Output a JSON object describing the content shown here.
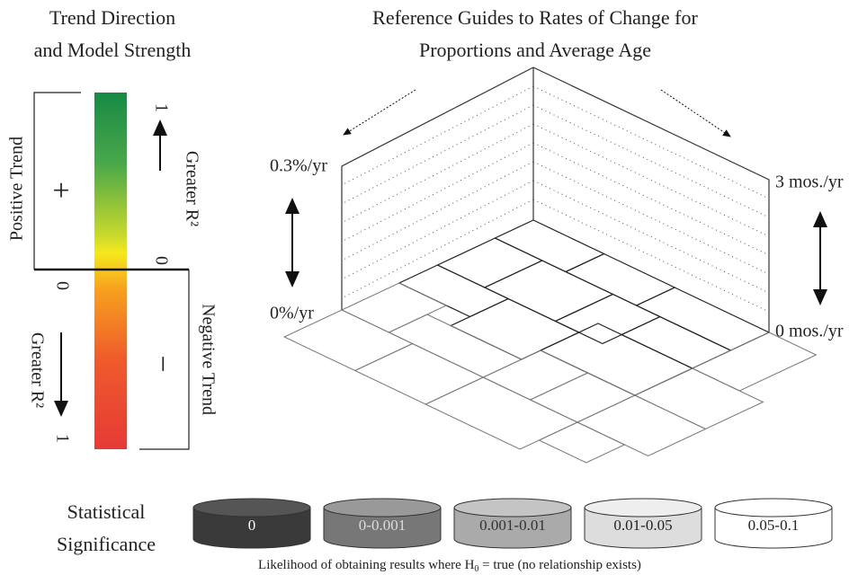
{
  "trend_legend": {
    "title": [
      "Trend Direction",
      "and Model Strength"
    ],
    "positive": {
      "label": "Positive Trend",
      "sign": "+",
      "axis_top": "1",
      "axis_bottom": "0",
      "axis_label": "Greater R²"
    },
    "negative": {
      "label": "Negative Trend",
      "sign": "−",
      "axis_top": "0",
      "axis_bottom": "1",
      "axis_label": "Greater R²"
    }
  },
  "rate_guides": {
    "title": [
      "Reference Guides to Rates of Change for",
      "Proportions and Average Age"
    ],
    "left_top": "0.3%/yr",
    "left_bottom": "0%/yr",
    "right_top": "3 mos./yr",
    "right_bottom": "0 mos./yr"
  },
  "significance": {
    "title": [
      "Statistical",
      "Significance"
    ],
    "classes": [
      "0",
      "0-0.001",
      "0.001-0.01",
      "0.01-0.05",
      "0.05-0.1"
    ],
    "caption": [
      "Likelihood of obtaining results where H",
      "0",
      " = true (no relationship exists)"
    ]
  }
}
